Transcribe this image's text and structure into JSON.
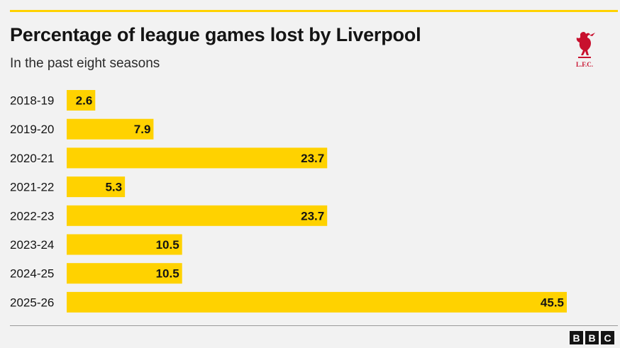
{
  "header": {
    "title": "Percentage of league games lost by Liverpool",
    "subtitle": "In the past eight seasons",
    "logo_text": "L.F.C."
  },
  "footer": {
    "brand_letters": [
      "B",
      "B",
      "C"
    ]
  },
  "colors": {
    "bar": "#ffd200",
    "accent_rule": "#ffd200",
    "logo": "#c8102e",
    "text": "#141414"
  },
  "chart_data": {
    "type": "bar",
    "orientation": "horizontal",
    "title": "Percentage of league games lost by Liverpool",
    "subtitle": "In the past eight seasons",
    "categories": [
      "2018-19",
      "2019-20",
      "2020-21",
      "2021-22",
      "2022-23",
      "2023-24",
      "2024-25",
      "2025-26"
    ],
    "values": [
      2.6,
      7.9,
      23.7,
      5.3,
      23.7,
      10.5,
      10.5,
      45.5
    ],
    "data_labels": [
      "2.6",
      "7.9",
      "23.7",
      "5.3",
      "23.7",
      "10.5",
      "10.5",
      "45.5"
    ],
    "xlim": [
      0,
      45.5
    ],
    "grid": false,
    "legend": "none"
  }
}
